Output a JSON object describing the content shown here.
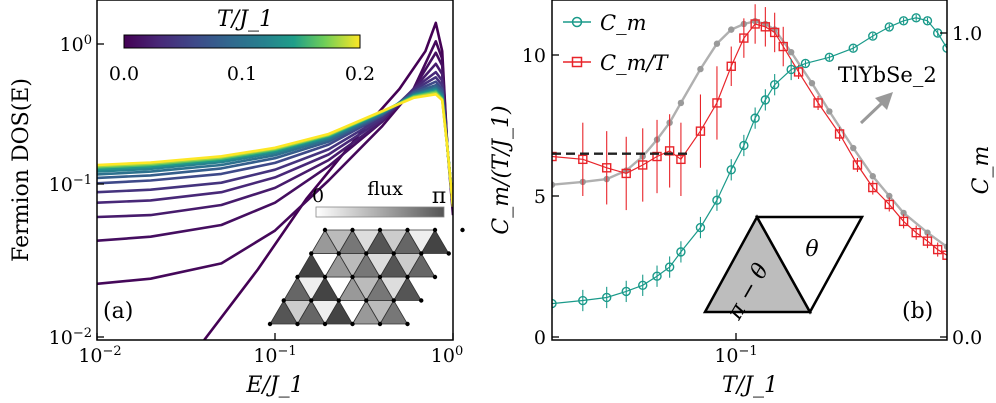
{
  "chart_data": [
    {
      "panel": "(a)",
      "type": "line",
      "xlabel": "E/J_1",
      "ylabel": "Fermion DOS(E)",
      "xscale": "log",
      "yscale": "log",
      "xlim": [
        0.01,
        1.0
      ],
      "ylim": [
        0.01,
        2.0
      ],
      "xticks": [
        "10^-2",
        "10^-1",
        "10^0"
      ],
      "yticks": [
        "10^-2",
        "10^-1",
        "10^0"
      ],
      "colorbar": {
        "label": "T/J_1",
        "ticks": [
          "0.0",
          "0.1",
          "0.2"
        ],
        "range": [
          0.0,
          0.2
        ],
        "colormap": "viridis",
        "location": "upper-left"
      },
      "inset": {
        "label": "flux",
        "ticks": [
          "0",
          "π"
        ],
        "description": "triangular lattice of triangles shaded by flux value",
        "location": "lower-right"
      },
      "series": [
        {
          "T": 0.0,
          "x": [
            0.04,
            0.08,
            0.15,
            0.3,
            0.5,
            0.7,
            0.8,
            0.87,
            0.93,
            1.0
          ],
          "y": [
            0.01,
            0.03,
            0.09,
            0.25,
            0.5,
            0.9,
            1.4,
            0.9,
            0.2,
            0.07
          ]
        },
        {
          "T": 0.005,
          "x": [
            0.01,
            0.02,
            0.05,
            0.1,
            0.2,
            0.4,
            0.6,
            0.8,
            0.87,
            0.93,
            1.0
          ],
          "y": [
            0.024,
            0.026,
            0.033,
            0.055,
            0.12,
            0.28,
            0.5,
            1.05,
            0.8,
            0.2,
            0.08
          ]
        },
        {
          "T": 0.01,
          "x": [
            0.01,
            0.02,
            0.05,
            0.1,
            0.2,
            0.4,
            0.6,
            0.8,
            0.87,
            0.93,
            1.0
          ],
          "y": [
            0.047,
            0.05,
            0.06,
            0.085,
            0.15,
            0.3,
            0.5,
            0.88,
            0.72,
            0.2,
            0.08
          ]
        },
        {
          "T": 0.02,
          "x": [
            0.01,
            0.02,
            0.05,
            0.1,
            0.2,
            0.4,
            0.6,
            0.8,
            0.87,
            0.93,
            1.0
          ],
          "y": [
            0.068,
            0.07,
            0.082,
            0.107,
            0.165,
            0.3,
            0.5,
            0.74,
            0.63,
            0.2,
            0.08
          ]
        },
        {
          "T": 0.03,
          "x": [
            0.01,
            0.02,
            0.05,
            0.1,
            0.2,
            0.4,
            0.6,
            0.8,
            0.87,
            0.93,
            1.0
          ],
          "y": [
            0.085,
            0.088,
            0.1,
            0.126,
            0.18,
            0.31,
            0.5,
            0.65,
            0.57,
            0.2,
            0.08
          ]
        },
        {
          "T": 0.04,
          "x": [
            0.01,
            0.02,
            0.05,
            0.1,
            0.2,
            0.4,
            0.6,
            0.8,
            0.87,
            0.93,
            1.0
          ],
          "y": [
            0.1,
            0.104,
            0.116,
            0.142,
            0.195,
            0.32,
            0.49,
            0.6,
            0.53,
            0.2,
            0.08
          ]
        },
        {
          "T": 0.06,
          "x": [
            0.01,
            0.02,
            0.05,
            0.1,
            0.2,
            0.4,
            0.6,
            0.8,
            0.87,
            0.93,
            1.0
          ],
          "y": [
            0.115,
            0.12,
            0.133,
            0.158,
            0.21,
            0.33,
            0.48,
            0.56,
            0.5,
            0.2,
            0.08
          ]
        },
        {
          "T": 0.08,
          "x": [
            0.01,
            0.02,
            0.05,
            0.1,
            0.2,
            0.4,
            0.6,
            0.8,
            0.87,
            0.93,
            1.0
          ],
          "y": [
            0.125,
            0.13,
            0.145,
            0.17,
            0.22,
            0.335,
            0.47,
            0.53,
            0.48,
            0.2,
            0.08
          ]
        },
        {
          "T": 0.1,
          "x": [
            0.01,
            0.02,
            0.05,
            0.1,
            0.2,
            0.4,
            0.6,
            0.8,
            0.87,
            0.93,
            1.0
          ],
          "y": [
            0.132,
            0.138,
            0.153,
            0.178,
            0.228,
            0.34,
            0.46,
            0.51,
            0.46,
            0.2,
            0.08
          ]
        },
        {
          "T": 0.12,
          "x": [
            0.01,
            0.02,
            0.05,
            0.1,
            0.2,
            0.4,
            0.6,
            0.8,
            0.87,
            0.93,
            1.0
          ],
          "y": [
            0.138,
            0.144,
            0.16,
            0.185,
            0.234,
            0.345,
            0.455,
            0.5,
            0.45,
            0.2,
            0.08
          ]
        },
        {
          "T": 0.14,
          "x": [
            0.01,
            0.02,
            0.05,
            0.1,
            0.2,
            0.4,
            0.6,
            0.8,
            0.87,
            0.93,
            1.0
          ],
          "y": [
            0.143,
            0.149,
            0.165,
            0.19,
            0.238,
            0.348,
            0.45,
            0.49,
            0.44,
            0.2,
            0.08
          ]
        },
        {
          "T": 0.16,
          "x": [
            0.01,
            0.02,
            0.05,
            0.1,
            0.2,
            0.4,
            0.6,
            0.8,
            0.87,
            0.93,
            1.0
          ],
          "y": [
            0.147,
            0.153,
            0.169,
            0.194,
            0.242,
            0.35,
            0.445,
            0.48,
            0.43,
            0.2,
            0.08
          ]
        },
        {
          "T": 0.18,
          "x": [
            0.01,
            0.02,
            0.05,
            0.1,
            0.2,
            0.4,
            0.6,
            0.8,
            0.87,
            0.93,
            1.0
          ],
          "y": [
            0.15,
            0.156,
            0.172,
            0.197,
            0.245,
            0.352,
            0.44,
            0.47,
            0.425,
            0.2,
            0.08
          ]
        },
        {
          "T": 0.2,
          "x": [
            0.01,
            0.02,
            0.05,
            0.1,
            0.2,
            0.4,
            0.6,
            0.8,
            0.87,
            0.93,
            1.0
          ],
          "y": [
            0.153,
            0.159,
            0.175,
            0.2,
            0.248,
            0.354,
            0.435,
            0.46,
            0.42,
            0.2,
            0.08
          ]
        }
      ]
    },
    {
      "panel": "(b)",
      "type": "scatter",
      "xlabel": "T/J_1",
      "ylabel_left": "C_m/(T/J_1)",
      "ylabel_right": "C_m",
      "xscale": "log",
      "xlim": [
        0.015,
        0.6
      ],
      "ylim_left": [
        0,
        12
      ],
      "ylim_right": [
        0.0,
        1.1
      ],
      "xticks": [
        "10^-1"
      ],
      "yticks_left": [
        "0",
        "5",
        "10"
      ],
      "yticks_right": [
        "0.0",
        "1.0"
      ],
      "legend": {
        "location": "upper-left",
        "entries": [
          "C_m",
          "C_m/T"
        ]
      },
      "annotation": "TlYbSe_2",
      "colors": {
        "Cm": "#1a9a8a",
        "CmT": "#e8242a",
        "TlYbSe2": "#999999",
        "fit": "#222222"
      },
      "series": [
        {
          "name": "C_m",
          "axis": "right",
          "x": [
            0.015,
            0.02,
            0.025,
            0.03,
            0.035,
            0.04,
            0.045,
            0.05,
            0.06,
            0.07,
            0.08,
            0.09,
            0.1,
            0.11,
            0.12,
            0.14,
            0.16,
            0.2,
            0.25,
            0.3,
            0.35,
            0.4,
            0.45,
            0.5,
            0.55,
            0.6
          ],
          "y": [
            0.11,
            0.12,
            0.13,
            0.15,
            0.17,
            0.2,
            0.23,
            0.28,
            0.36,
            0.45,
            0.55,
            0.63,
            0.72,
            0.78,
            0.83,
            0.88,
            0.9,
            0.92,
            0.95,
            0.99,
            1.02,
            1.04,
            1.05,
            1.04,
            1.0,
            0.95
          ]
        },
        {
          "name": "C_m/T",
          "axis": "left",
          "x": [
            0.015,
            0.02,
            0.025,
            0.03,
            0.035,
            0.04,
            0.045,
            0.05,
            0.06,
            0.07,
            0.08,
            0.09,
            0.1,
            0.11,
            0.12,
            0.13,
            0.15,
            0.18,
            0.22,
            0.26,
            0.3,
            0.35,
            0.4,
            0.45,
            0.5,
            0.55,
            0.6
          ],
          "y": [
            6.4,
            6.3,
            6.0,
            5.8,
            6.1,
            6.4,
            6.6,
            6.3,
            7.3,
            8.3,
            9.6,
            10.6,
            11.1,
            11.0,
            10.8,
            10.3,
            9.4,
            8.3,
            7.2,
            6.1,
            5.3,
            4.7,
            4.1,
            3.7,
            3.4,
            3.1,
            2.9
          ]
        },
        {
          "name": "TlYbSe_2",
          "axis": "left",
          "x": [
            0.015,
            0.02,
            0.025,
            0.03,
            0.035,
            0.04,
            0.045,
            0.05,
            0.06,
            0.07,
            0.08,
            0.09,
            0.1,
            0.11,
            0.12,
            0.14,
            0.17,
            0.2,
            0.25,
            0.3,
            0.35,
            0.4,
            0.5,
            0.6
          ],
          "y": [
            5.4,
            5.5,
            5.6,
            5.9,
            6.4,
            7.0,
            7.6,
            8.3,
            9.5,
            10.4,
            10.9,
            11.1,
            11.2,
            11.1,
            10.9,
            10.1,
            9.0,
            8.0,
            6.7,
            5.7,
            5.0,
            4.4,
            3.7,
            3.2
          ]
        },
        {
          "name": "fit",
          "axis": "left",
          "x": [
            0.015,
            0.055
          ],
          "y": [
            6.5,
            6.5
          ]
        }
      ]
    }
  ]
}
